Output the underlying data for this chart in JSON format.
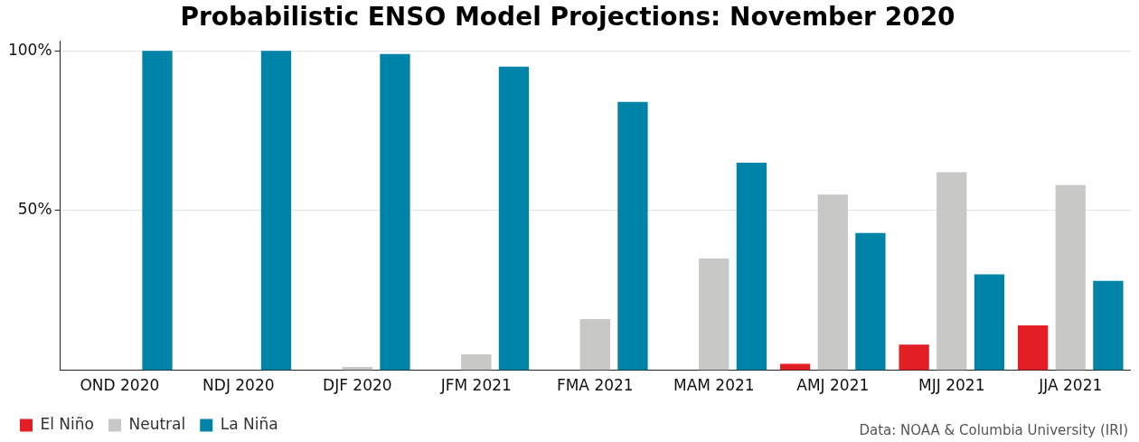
{
  "chart_data": {
    "type": "bar",
    "title": "Probabilistic ENSO Model Projections: November 2020",
    "categories": [
      "OND 2020",
      "NDJ 2020",
      "DJF 2020",
      "JFM 2021",
      "FMA 2021",
      "MAM 2021",
      "AMJ 2021",
      "MJJ 2021",
      "JJA 2021"
    ],
    "series": [
      {
        "name": "El Niño",
        "color": "#e31e24",
        "values": [
          0,
          0,
          0,
          0,
          0,
          0,
          2,
          8,
          14
        ]
      },
      {
        "name": "Neutral",
        "color": "#c8c8c6",
        "values": [
          0,
          0,
          1,
          5,
          16,
          35,
          55,
          62,
          58
        ]
      },
      {
        "name": "La Niña",
        "color": "#0083a9",
        "values": [
          100,
          100,
          99,
          95,
          84,
          65,
          43,
          30,
          28
        ]
      }
    ],
    "ylim": [
      0,
      103
    ],
    "yticks": [
      {
        "value": 50,
        "label": "50%"
      },
      {
        "value": 100,
        "label": "100%"
      }
    ],
    "grid": "y",
    "legend": "bottom left",
    "annotations": [
      "Data: NOAA & Columbia University (IRI)"
    ]
  }
}
